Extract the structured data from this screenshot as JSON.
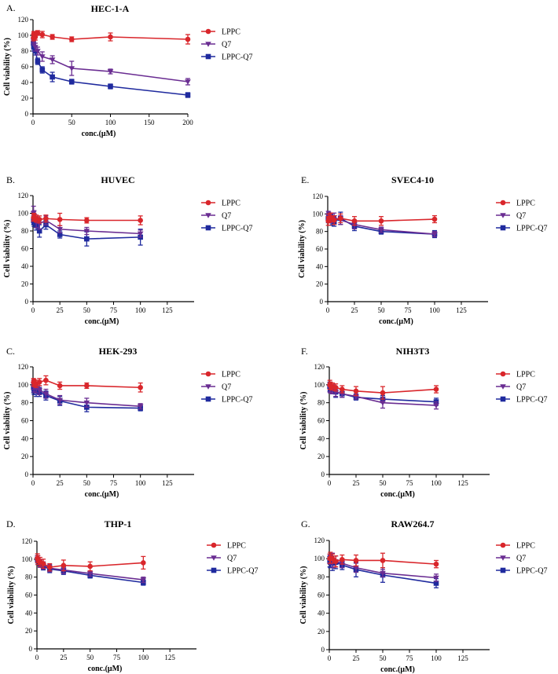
{
  "colors": {
    "LPPC": "#d9262b",
    "Q7": "#6a2d92",
    "LPPC-Q7": "#1f2a9e",
    "axis": "#000000"
  },
  "chart_data": [
    {
      "id": "A",
      "letter": "A.",
      "title": "HEC-1-A",
      "type": "line",
      "xlabel": "conc.(μM)",
      "ylabel": "Cell viability (%)",
      "xlim": [
        0,
        200
      ],
      "ylim": [
        0,
        120
      ],
      "xticks": [
        0,
        50,
        100,
        150,
        200
      ],
      "yticks": [
        0,
        20,
        40,
        60,
        80,
        100,
        120
      ],
      "series": [
        {
          "name": "LPPC",
          "marker": "circle",
          "x": [
            0.5,
            1,
            3,
            6,
            12,
            25,
            50,
            100,
            200
          ],
          "values": [
            97,
            102,
            98,
            103,
            101,
            98,
            95,
            98,
            95
          ],
          "errors": [
            4,
            3,
            4,
            3,
            4,
            3,
            3,
            5,
            6
          ]
        },
        {
          "name": "Q7",
          "marker": "triangle-down",
          "x": [
            0.5,
            1,
            3,
            6,
            12,
            25,
            50,
            100,
            200
          ],
          "values": [
            94,
            92,
            85,
            80,
            73,
            69,
            58,
            54,
            41
          ],
          "errors": [
            4,
            4,
            5,
            5,
            6,
            5,
            9,
            3,
            4
          ]
        },
        {
          "name": "LPPC-Q7",
          "marker": "square",
          "x": [
            0.5,
            1,
            3,
            6,
            12,
            25,
            50,
            100,
            200
          ],
          "values": [
            90,
            85,
            80,
            67,
            56,
            47,
            41,
            35,
            24
          ],
          "errors": [
            5,
            5,
            5,
            4,
            4,
            6,
            3,
            3,
            3
          ]
        }
      ]
    },
    {
      "id": "B",
      "letter": "B.",
      "title": "HUVEC",
      "type": "line",
      "xlabel": "conc.(μM)",
      "ylabel": "Cell viability (%)",
      "xlim": [
        0,
        150
      ],
      "ylim": [
        0,
        120
      ],
      "xticks": [
        0,
        25,
        50,
        75,
        100,
        125
      ],
      "yticks": [
        0,
        20,
        40,
        60,
        80,
        100,
        120
      ],
      "series": [
        {
          "name": "LPPC",
          "marker": "circle",
          "x": [
            0.5,
            1,
            3,
            6,
            12,
            25,
            50,
            100
          ],
          "values": [
            95,
            96,
            94,
            93,
            94,
            93,
            92,
            92
          ],
          "errors": [
            4,
            4,
            4,
            4,
            4,
            7,
            3,
            5
          ]
        },
        {
          "name": "Q7",
          "marker": "triangle-down",
          "x": [
            0.5,
            1,
            3,
            6,
            12,
            25,
            50,
            100
          ],
          "values": [
            100,
            97,
            90,
            88,
            92,
            82,
            80,
            77
          ],
          "errors": [
            8,
            6,
            6,
            6,
            5,
            4,
            4,
            4
          ]
        },
        {
          "name": "LPPC-Q7",
          "marker": "square",
          "x": [
            0.5,
            1,
            3,
            6,
            12,
            25,
            50,
            100
          ],
          "values": [
            92,
            90,
            86,
            80,
            87,
            76,
            71,
            73
          ],
          "errors": [
            5,
            5,
            5,
            7,
            5,
            4,
            8,
            9
          ]
        }
      ]
    },
    {
      "id": "C",
      "letter": "C.",
      "title": "HEK-293",
      "type": "line",
      "xlabel": "conc.(μM)",
      "ylabel": "Cell viability (%)",
      "xlim": [
        0,
        150
      ],
      "ylim": [
        0,
        120
      ],
      "xticks": [
        0,
        25,
        50,
        75,
        100,
        125
      ],
      "yticks": [
        0,
        20,
        40,
        60,
        80,
        100,
        120
      ],
      "series": [
        {
          "name": "LPPC",
          "marker": "circle",
          "x": [
            0.5,
            1,
            3,
            6,
            12,
            25,
            50,
            100
          ],
          "values": [
            103,
            102,
            101,
            103,
            105,
            99,
            99,
            97
          ],
          "errors": [
            4,
            4,
            4,
            4,
            5,
            4,
            3,
            5
          ]
        },
        {
          "name": "Q7",
          "marker": "triangle-down",
          "x": [
            0.5,
            1,
            3,
            6,
            12,
            25,
            50,
            100
          ],
          "values": [
            100,
            97,
            96,
            94,
            90,
            83,
            80,
            76
          ],
          "errors": [
            5,
            5,
            5,
            5,
            5,
            5,
            5,
            3
          ]
        },
        {
          "name": "LPPC-Q7",
          "marker": "square",
          "x": [
            0.5,
            1,
            3,
            6,
            12,
            25,
            50,
            100
          ],
          "values": [
            97,
            95,
            93,
            92,
            88,
            82,
            75,
            74
          ],
          "errors": [
            6,
            6,
            6,
            5,
            5,
            5,
            5,
            3
          ]
        }
      ]
    },
    {
      "id": "D",
      "letter": "D.",
      "title": "THP-1",
      "type": "line",
      "xlabel": "conc.(μM)",
      "ylabel": "Cell viability (%)",
      "xlim": [
        0,
        150
      ],
      "ylim": [
        0,
        120
      ],
      "xticks": [
        0,
        25,
        50,
        75,
        100,
        125
      ],
      "yticks": [
        0,
        20,
        40,
        60,
        80,
        100,
        120
      ],
      "series": [
        {
          "name": "LPPC",
          "marker": "circle",
          "x": [
            0.5,
            1,
            3,
            6,
            12,
            25,
            50,
            100
          ],
          "values": [
            101,
            99,
            97,
            95,
            91,
            93,
            92,
            96
          ],
          "errors": [
            5,
            5,
            5,
            5,
            4,
            6,
            5,
            7
          ]
        },
        {
          "name": "Q7",
          "marker": "triangle-down",
          "x": [
            0.5,
            1,
            3,
            6,
            12,
            25,
            50,
            100
          ],
          "values": [
            100,
            98,
            95,
            93,
            90,
            88,
            84,
            77
          ],
          "errors": [
            4,
            4,
            4,
            4,
            4,
            4,
            3,
            3
          ]
        },
        {
          "name": "LPPC-Q7",
          "marker": "square",
          "x": [
            0.5,
            1,
            3,
            6,
            12,
            25,
            50,
            100
          ],
          "values": [
            100,
            98,
            95,
            92,
            89,
            87,
            82,
            74
          ],
          "errors": [
            4,
            4,
            4,
            4,
            4,
            4,
            3,
            3
          ]
        }
      ]
    },
    {
      "id": "E",
      "letter": "E.",
      "title": "SVEC4-10",
      "type": "line",
      "xlabel": "conc.(μM)",
      "ylabel": "Cell viability (%)",
      "xlim": [
        0,
        150
      ],
      "ylim": [
        0,
        120
      ],
      "xticks": [
        0,
        25,
        50,
        75,
        100,
        125
      ],
      "yticks": [
        0,
        20,
        40,
        60,
        80,
        100,
        120
      ],
      "series": [
        {
          "name": "LPPC",
          "marker": "circle",
          "x": [
            0.5,
            1,
            3,
            6,
            12,
            25,
            50,
            100
          ],
          "values": [
            92,
            95,
            96,
            93,
            95,
            92,
            92,
            94
          ],
          "errors": [
            5,
            5,
            5,
            5,
            5,
            5,
            5,
            4
          ]
        },
        {
          "name": "Q7",
          "marker": "triangle-down",
          "x": [
            0.5,
            1,
            3,
            6,
            12,
            25,
            50,
            100
          ],
          "values": [
            98,
            97,
            95,
            96,
            93,
            88,
            82,
            77
          ],
          "errors": [
            5,
            5,
            5,
            5,
            5,
            5,
            3,
            3
          ]
        },
        {
          "name": "LPPC-Q7",
          "marker": "square",
          "x": [
            0.5,
            1,
            3,
            6,
            12,
            25,
            50,
            100
          ],
          "values": [
            95,
            96,
            93,
            91,
            95,
            86,
            80,
            77
          ],
          "errors": [
            5,
            5,
            6,
            5,
            7,
            5,
            3,
            4
          ]
        }
      ]
    },
    {
      "id": "F",
      "letter": "F.",
      "title": "NIH3T3",
      "type": "line",
      "xlabel": "conc.(μM)",
      "ylabel": "Cell viability (%)",
      "xlim": [
        0,
        150
      ],
      "ylim": [
        0,
        120
      ],
      "xticks": [
        0,
        25,
        50,
        75,
        100,
        125
      ],
      "yticks": [
        0,
        20,
        40,
        60,
        80,
        100,
        120
      ],
      "series": [
        {
          "name": "LPPC",
          "marker": "circle",
          "x": [
            0.5,
            1,
            3,
            6,
            12,
            25,
            50,
            100
          ],
          "values": [
            100,
            99,
            98,
            97,
            95,
            93,
            91,
            95
          ],
          "errors": [
            5,
            4,
            4,
            4,
            4,
            5,
            7,
            4
          ]
        },
        {
          "name": "Q7",
          "marker": "triangle-down",
          "x": [
            0.5,
            1,
            3,
            6,
            12,
            25,
            50,
            100
          ],
          "values": [
            97,
            96,
            95,
            92,
            90,
            87,
            80,
            77
          ],
          "errors": [
            5,
            5,
            5,
            5,
            4,
            3,
            6,
            4
          ]
        },
        {
          "name": "LPPC-Q7",
          "marker": "square",
          "x": [
            0.5,
            1,
            3,
            6,
            12,
            25,
            50,
            100
          ],
          "values": [
            98,
            96,
            95,
            92,
            90,
            86,
            84,
            81
          ],
          "errors": [
            5,
            5,
            5,
            6,
            4,
            3,
            4,
            4
          ]
        }
      ]
    },
    {
      "id": "G",
      "letter": "G.",
      "title": "RAW264.7",
      "type": "line",
      "xlabel": "conc.(μM)",
      "ylabel": "Cell viability (%)",
      "xlim": [
        0,
        150
      ],
      "ylim": [
        0,
        120
      ],
      "xticks": [
        0,
        25,
        50,
        75,
        100,
        125
      ],
      "yticks": [
        0,
        20,
        40,
        60,
        80,
        100,
        120
      ],
      "series": [
        {
          "name": "LPPC",
          "marker": "circle",
          "x": [
            0.5,
            1,
            3,
            6,
            12,
            25,
            50,
            100
          ],
          "values": [
            100,
            101,
            100,
            97,
            99,
            98,
            98,
            94
          ],
          "errors": [
            5,
            6,
            5,
            6,
            5,
            6,
            8,
            4
          ]
        },
        {
          "name": "Q7",
          "marker": "triangle-down",
          "x": [
            0.5,
            1,
            3,
            6,
            12,
            25,
            50,
            100
          ],
          "values": [
            100,
            99,
            98,
            97,
            95,
            90,
            84,
            79
          ],
          "errors": [
            5,
            5,
            8,
            6,
            5,
            5,
            4,
            4
          ]
        },
        {
          "name": "LPPC-Q7",
          "marker": "square",
          "x": [
            0.5,
            1,
            3,
            6,
            12,
            25,
            50,
            100
          ],
          "values": [
            97,
            96,
            95,
            96,
            93,
            88,
            82,
            73
          ],
          "errors": [
            6,
            6,
            8,
            7,
            5,
            8,
            8,
            5
          ]
        }
      ]
    }
  ]
}
